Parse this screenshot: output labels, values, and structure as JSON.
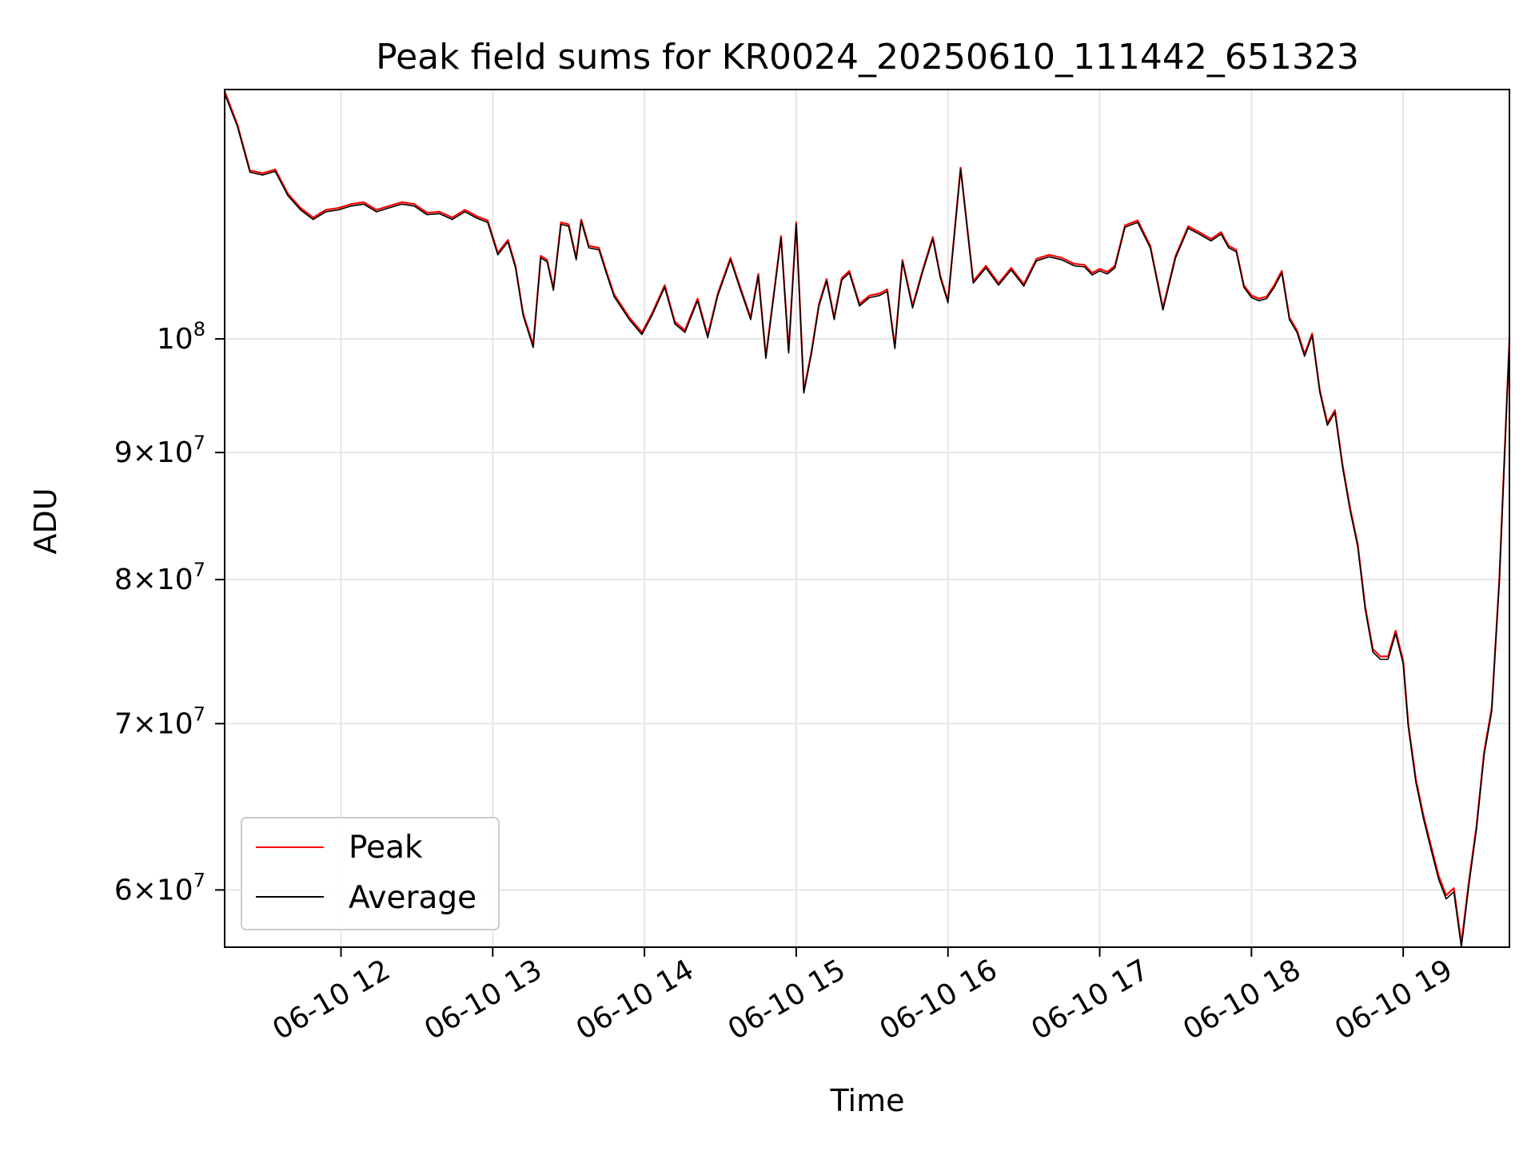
{
  "chart_data": {
    "type": "line",
    "title": "Peak field sums for KR0024_20250610_111442_651323",
    "xlabel": "Time",
    "ylabel": "ADU",
    "yscale": "log",
    "grid": true,
    "legend_position": "lower-left",
    "xlim": [
      "2025-06-10 11:14",
      "2025-06-10 19:42"
    ],
    "ylim": [
      56900000,
      126000000
    ],
    "x_ticks": [
      {
        "value": "2025-06-10 12:00",
        "label": "06-10 12"
      },
      {
        "value": "2025-06-10 13:00",
        "label": "06-10 13"
      },
      {
        "value": "2025-06-10 14:00",
        "label": "06-10 14"
      },
      {
        "value": "2025-06-10 15:00",
        "label": "06-10 15"
      },
      {
        "value": "2025-06-10 16:00",
        "label": "06-10 16"
      },
      {
        "value": "2025-06-10 17:00",
        "label": "06-10 17"
      },
      {
        "value": "2025-06-10 18:00",
        "label": "06-10 18"
      },
      {
        "value": "2025-06-10 19:00",
        "label": "06-10 19"
      }
    ],
    "y_ticks": [
      {
        "value": 60000000,
        "mantissa": "6",
        "exponent": "7"
      },
      {
        "value": 70000000,
        "mantissa": "7",
        "exponent": "7"
      },
      {
        "value": 80000000,
        "mantissa": "8",
        "exponent": "7"
      },
      {
        "value": 90000000,
        "mantissa": "9",
        "exponent": "7"
      },
      {
        "value": 100000000,
        "mantissa": "",
        "exponent": "8"
      }
    ],
    "times_minutes_from_midnight": [
      674.0,
      679.0,
      684.0,
      689.0,
      694.0,
      699.0,
      704.0,
      709.0,
      714.0,
      719.0,
      724.0,
      729.0,
      734.0,
      739.0,
      744.0,
      749.0,
      754.0,
      759.0,
      764.0,
      769.0,
      774.0,
      778.0,
      782.0,
      786.0,
      789.0,
      792.0,
      796.0,
      799.0,
      801.5,
      804.0,
      807.0,
      810.0,
      813.0,
      815.0,
      818.0,
      822.0,
      825.0,
      828.0,
      834.0,
      839.0,
      843.0,
      848.0,
      852.0,
      856.0,
      861.0,
      865.0,
      869.0,
      874.0,
      878.0,
      882.0,
      885.0,
      888.0,
      891.0,
      894.0,
      897.0,
      900.0,
      903.0,
      906.0,
      909.0,
      912.0,
      915.0,
      918.0,
      921.0,
      925.0,
      929.0,
      933.0,
      936.0,
      939.0,
      942.0,
      946.0,
      950.0,
      954.0,
      957.0,
      960.0,
      965.0,
      970.0,
      975.0,
      980.0,
      985.0,
      990.0,
      995.0,
      1000.0,
      1005.0,
      1010.0,
      1014.0,
      1017.0,
      1020.0,
      1023.0,
      1026.0,
      1030.0,
      1035.0,
      1040.0,
      1045.0,
      1050.0,
      1055.0,
      1060.0,
      1064.0,
      1068.0,
      1071.0,
      1074.0,
      1077.0,
      1080.0,
      1083.0,
      1086.0,
      1089.0,
      1092.0,
      1095.0,
      1098.0,
      1101.0,
      1104.0,
      1107.0,
      1110.0,
      1113.0,
      1116.0,
      1119.0,
      1122.0,
      1125.0,
      1128.0,
      1131.0,
      1134.0,
      1137.0,
      1140.0,
      1142.0,
      1145.0,
      1148.0,
      1151.0,
      1154.0,
      1157.0,
      1160.0,
      1163.0,
      1166.0,
      1169.0,
      1172.0,
      1175.0,
      1178.0,
      1182.0
    ],
    "series": [
      {
        "name": "Peak",
        "color": "#ff0000",
        "values": [
          125800000,
          122000000,
          116900000,
          116600000,
          117000000,
          114400000,
          112900000,
          111900000,
          112700000,
          112900000,
          113300000,
          113500000,
          112700000,
          113100000,
          113500000,
          113300000,
          112400000,
          112500000,
          111900000,
          112700000,
          112000000,
          111600000,
          108300000,
          109600000,
          107000000,
          102400000,
          99400000,
          108000000,
          107600000,
          104800000,
          111400000,
          111200000,
          107800000,
          111700000,
          109000000,
          108800000,
          106400000,
          104200000,
          102000000,
          100600000,
          102400000,
          105100000,
          101600000,
          100800000,
          103800000,
          100300000,
          104300000,
          107800000,
          104800000,
          102000000,
          106200000,
          98400000,
          104000000,
          110000000,
          98900000,
          111400000,
          95300000,
          98800000,
          103300000,
          105700000,
          102000000,
          105800000,
          106500000,
          103300000,
          104100000,
          104300000,
          104700000,
          99300000,
          107600000,
          103100000,
          106600000,
          109900000,
          106000000,
          103600000,
          117200000,
          105500000,
          107000000,
          105300000,
          106800000,
          105200000,
          107700000,
          108100000,
          107800000,
          107200000,
          107100000,
          106300000,
          106700000,
          106400000,
          107000000,
          111100000,
          111600000,
          109000000,
          102900000,
          108000000,
          111000000,
          110300000,
          109700000,
          110400000,
          109000000,
          108600000,
          105100000,
          104100000,
          103800000,
          104000000,
          105100000,
          106500000,
          102000000,
          100800000,
          98600000,
          100500000,
          95400000,
          92500000,
          93600000,
          89000000,
          85500000,
          82700000,
          78000000,
          75000000,
          74500000,
          74500000,
          76300000,
          74200000,
          70000000,
          66500000,
          64300000,
          62500000,
          60800000,
          59700000,
          60100000,
          57100000,
          60500000,
          63700000,
          68200000,
          71000000,
          80000000,
          100000000
        ]
      },
      {
        "name": "Average",
        "color": "#000000",
        "values": [
          125500000,
          121800000,
          116700000,
          116400000,
          116800000,
          114200000,
          112700000,
          111700000,
          112500000,
          112700000,
          113100000,
          113300000,
          112500000,
          112900000,
          113300000,
          113100000,
          112200000,
          112300000,
          111700000,
          112500000,
          111800000,
          111400000,
          108100000,
          109400000,
          106800000,
          102200000,
          99200000,
          107800000,
          107400000,
          104600000,
          111200000,
          111000000,
          107600000,
          111500000,
          108800000,
          108600000,
          106200000,
          104000000,
          101800000,
          100400000,
          102200000,
          104900000,
          101400000,
          100600000,
          103600000,
          100100000,
          104100000,
          107600000,
          104600000,
          101800000,
          106000000,
          98200000,
          103800000,
          109800000,
          98700000,
          111200000,
          95100000,
          98600000,
          103100000,
          105500000,
          101800000,
          105600000,
          106300000,
          103100000,
          103900000,
          104100000,
          104500000,
          99100000,
          107400000,
          102900000,
          106400000,
          109700000,
          105800000,
          103400000,
          117000000,
          105300000,
          106800000,
          105100000,
          106600000,
          105000000,
          107500000,
          107900000,
          107600000,
          107000000,
          106900000,
          106100000,
          106500000,
          106200000,
          106800000,
          110900000,
          111400000,
          108800000,
          102700000,
          107800000,
          110800000,
          110100000,
          109500000,
          110200000,
          108800000,
          108400000,
          104900000,
          103900000,
          103600000,
          103800000,
          104900000,
          106300000,
          101800000,
          100600000,
          98400000,
          100300000,
          95200000,
          92300000,
          93400000,
          88800000,
          85300000,
          82500000,
          77800000,
          74800000,
          74300000,
          74300000,
          76100000,
          74000000,
          69800000,
          66300000,
          64100000,
          62300000,
          60600000,
          59500000,
          59900000,
          56900000,
          60300000,
          63500000,
          68000000,
          70800000,
          79800000,
          99800000
        ]
      }
    ]
  }
}
